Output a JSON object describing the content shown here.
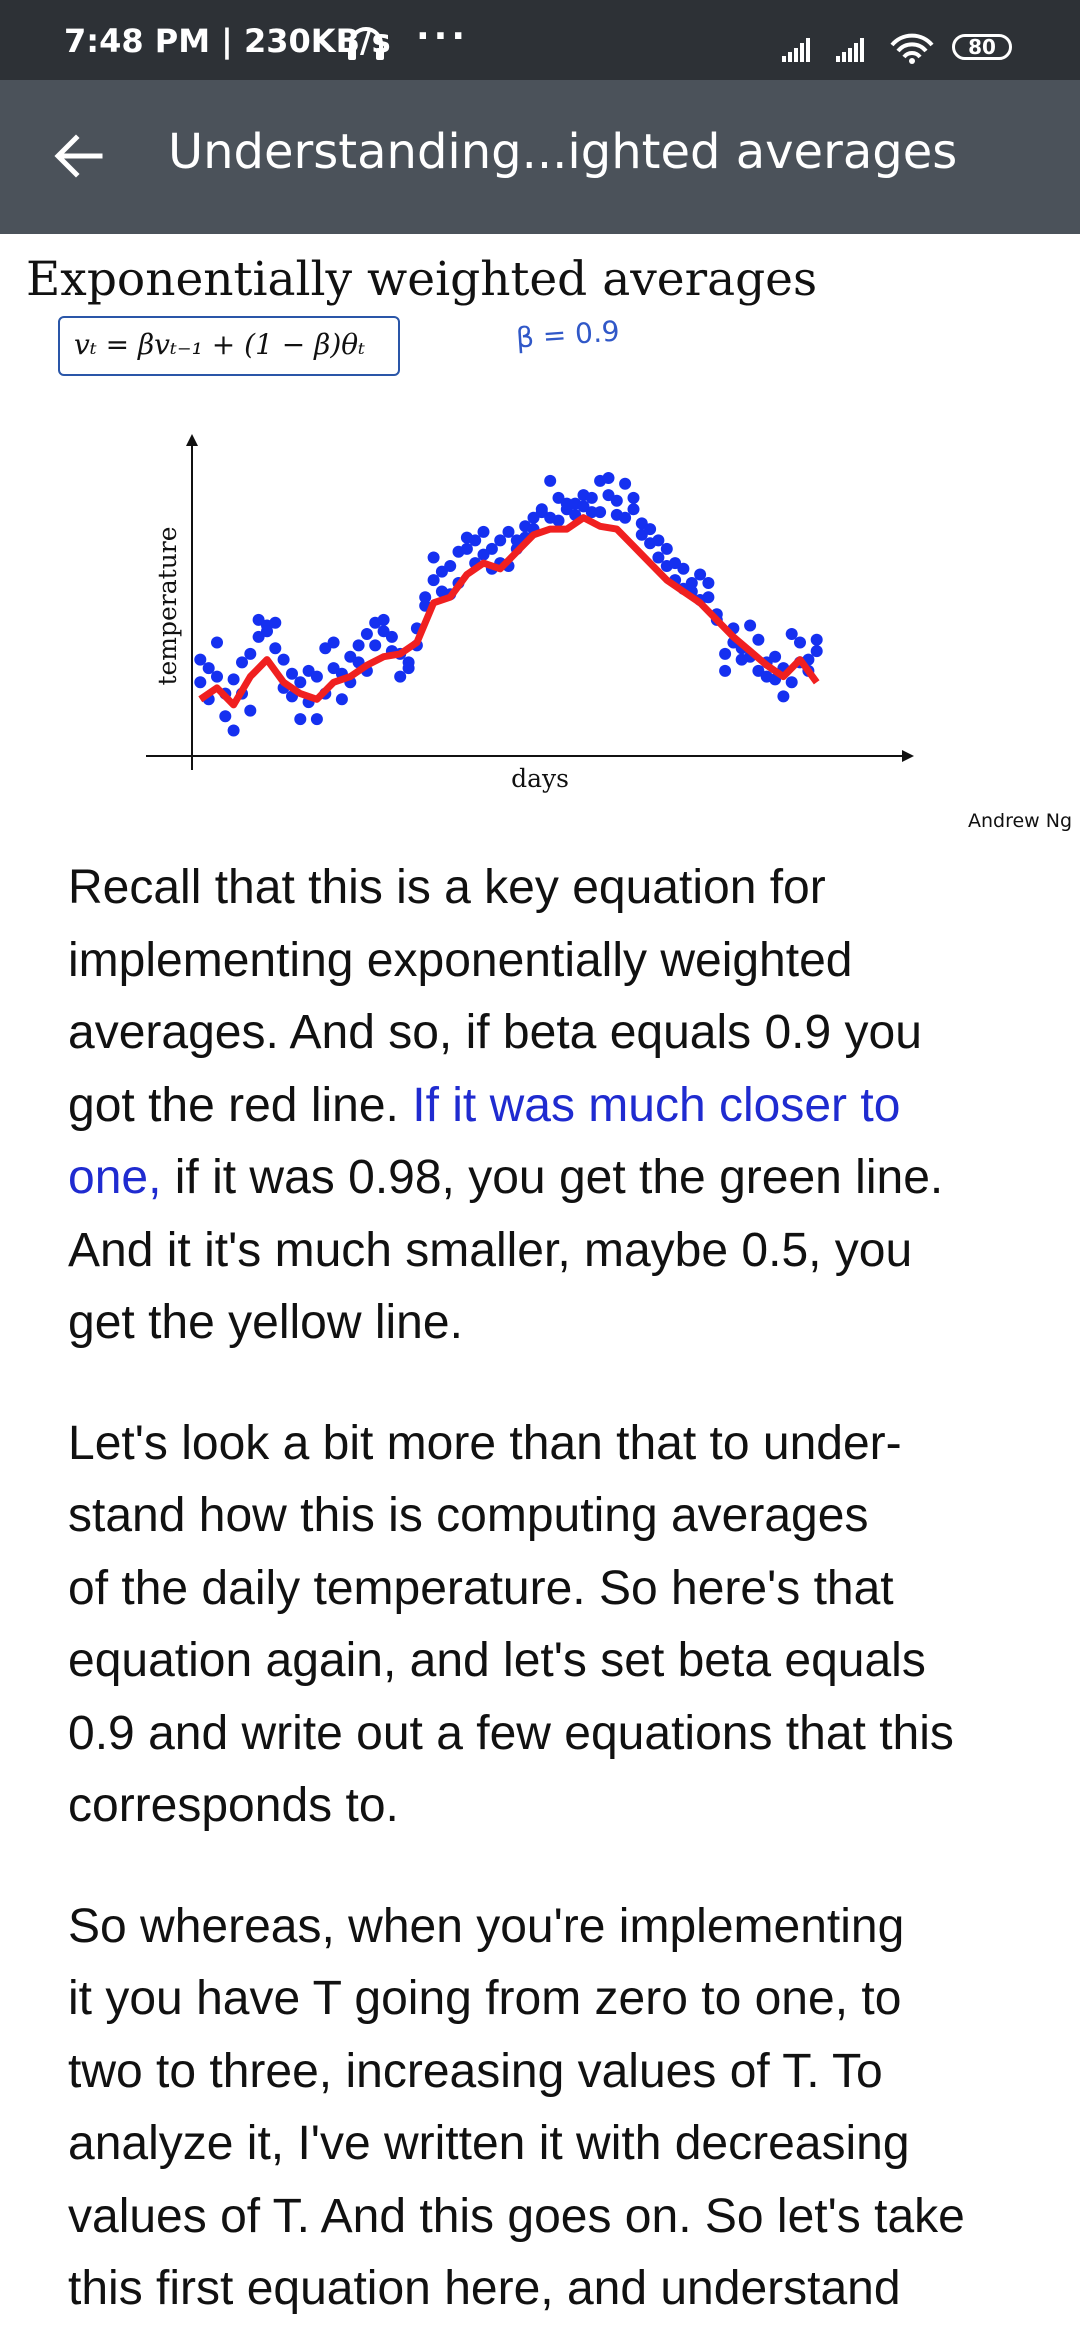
{
  "status_bar": {
    "time": "7:48 PM | 230KB/s",
    "dots": "···",
    "battery": "80"
  },
  "app_bar": {
    "title": "Understanding...ighted averages"
  },
  "slide": {
    "title": "Exponentially weighted averages",
    "formula": "v_t = βv_{t−1} + (1 − β)θ_t",
    "formula_display": "vₜ = βvₜ₋₁ + (1 − β)θₜ",
    "beta_note": "β = 0.9",
    "credit": "Andrew Ng"
  },
  "chart_data": {
    "type": "scatter",
    "xlabel": "days",
    "ylabel": "temperature",
    "grid": false,
    "legend": "none",
    "series": [
      {
        "kind": "scatter",
        "color": "#1530f0",
        "points": [
          [
            1,
            34
          ],
          [
            1,
            26
          ],
          [
            2,
            31
          ],
          [
            2,
            20
          ],
          [
            3,
            28
          ],
          [
            3,
            40
          ],
          [
            4,
            22
          ],
          [
            4,
            14
          ],
          [
            5,
            27
          ],
          [
            5,
            9
          ],
          [
            6,
            22
          ],
          [
            6,
            33
          ],
          [
            7,
            36
          ],
          [
            7,
            16
          ],
          [
            8,
            42
          ],
          [
            8,
            48
          ],
          [
            9,
            46
          ],
          [
            9,
            44
          ],
          [
            10,
            47
          ],
          [
            10,
            38
          ],
          [
            11,
            34
          ],
          [
            11,
            24
          ],
          [
            12,
            29
          ],
          [
            12,
            21
          ],
          [
            13,
            26
          ],
          [
            13,
            13
          ],
          [
            14,
            19
          ],
          [
            14,
            30
          ],
          [
            15,
            28
          ],
          [
            15,
            13
          ],
          [
            16,
            22
          ],
          [
            16,
            38
          ],
          [
            17,
            40
          ],
          [
            17,
            31
          ],
          [
            18,
            29
          ],
          [
            18,
            20
          ],
          [
            19,
            26
          ],
          [
            19,
            35
          ],
          [
            20,
            39
          ],
          [
            20,
            33
          ],
          [
            21,
            30
          ],
          [
            21,
            43
          ],
          [
            22,
            47
          ],
          [
            22,
            39
          ],
          [
            23,
            44
          ],
          [
            23,
            48
          ],
          [
            24,
            37
          ],
          [
            24,
            42
          ],
          [
            25,
            36
          ],
          [
            25,
            28
          ],
          [
            26,
            33
          ],
          [
            26,
            31
          ],
          [
            27,
            39
          ],
          [
            27,
            45
          ],
          [
            28,
            53
          ],
          [
            28,
            56
          ],
          [
            29,
            70
          ],
          [
            29,
            62
          ],
          [
            30,
            65
          ],
          [
            30,
            58
          ],
          [
            31,
            67
          ],
          [
            31,
            57
          ],
          [
            32,
            61
          ],
          [
            32,
            72
          ],
          [
            33,
            73
          ],
          [
            33,
            77
          ],
          [
            34,
            76
          ],
          [
            34,
            68
          ],
          [
            35,
            71
          ],
          [
            35,
            79
          ],
          [
            36,
            73
          ],
          [
            36,
            66
          ],
          [
            37,
            68
          ],
          [
            37,
            76
          ],
          [
            38,
            67
          ],
          [
            38,
            79
          ],
          [
            39,
            73
          ],
          [
            39,
            76
          ],
          [
            40,
            81
          ],
          [
            40,
            77
          ],
          [
            41,
            84
          ],
          [
            41,
            80
          ],
          [
            42,
            86
          ],
          [
            42,
            87
          ],
          [
            43,
            84
          ],
          [
            43,
            97
          ],
          [
            44,
            83
          ],
          [
            44,
            91
          ],
          [
            45,
            87
          ],
          [
            45,
            89
          ],
          [
            46,
            85
          ],
          [
            46,
            89
          ],
          [
            47,
            88
          ],
          [
            47,
            92
          ],
          [
            48,
            86
          ],
          [
            48,
            91
          ],
          [
            49,
            86
          ],
          [
            49,
            97
          ],
          [
            50,
            92
          ],
          [
            50,
            98
          ],
          [
            51,
            90
          ],
          [
            51,
            85
          ],
          [
            52,
            84
          ],
          [
            52,
            96
          ],
          [
            53,
            87
          ],
          [
            53,
            91
          ],
          [
            54,
            78
          ],
          [
            54,
            82
          ],
          [
            55,
            80
          ],
          [
            55,
            75
          ],
          [
            56,
            70
          ],
          [
            56,
            76
          ],
          [
            57,
            73
          ],
          [
            57,
            67
          ],
          [
            58,
            68
          ],
          [
            58,
            62
          ],
          [
            59,
            66
          ],
          [
            59,
            59
          ],
          [
            60,
            61
          ],
          [
            60,
            58
          ],
          [
            61,
            64
          ],
          [
            61,
            55
          ],
          [
            62,
            56
          ],
          [
            62,
            61
          ],
          [
            63,
            50
          ],
          [
            63,
            48
          ],
          [
            64,
            36
          ],
          [
            64,
            30
          ],
          [
            65,
            40
          ],
          [
            65,
            45
          ],
          [
            66,
            38
          ],
          [
            66,
            34
          ],
          [
            67,
            35
          ],
          [
            67,
            46
          ],
          [
            68,
            30
          ],
          [
            68,
            41
          ],
          [
            69,
            33
          ],
          [
            69,
            28
          ],
          [
            70,
            27
          ],
          [
            70,
            35
          ],
          [
            71,
            21
          ],
          [
            71,
            31
          ],
          [
            72,
            26
          ],
          [
            72,
            43
          ],
          [
            73,
            40
          ],
          [
            73,
            33
          ],
          [
            74,
            34
          ],
          [
            74,
            30
          ],
          [
            75,
            37
          ],
          [
            75,
            41
          ]
        ]
      },
      {
        "kind": "line",
        "color": "#f02020",
        "points": [
          [
            1,
            20
          ],
          [
            3,
            24
          ],
          [
            5,
            18
          ],
          [
            7,
            28
          ],
          [
            9,
            34
          ],
          [
            11,
            26
          ],
          [
            13,
            22
          ],
          [
            15,
            20
          ],
          [
            17,
            26
          ],
          [
            19,
            28
          ],
          [
            21,
            32
          ],
          [
            23,
            35
          ],
          [
            25,
            36
          ],
          [
            27,
            40
          ],
          [
            29,
            54
          ],
          [
            31,
            56
          ],
          [
            33,
            64
          ],
          [
            35,
            68
          ],
          [
            37,
            66
          ],
          [
            39,
            72
          ],
          [
            41,
            78
          ],
          [
            43,
            80
          ],
          [
            45,
            80
          ],
          [
            47,
            84
          ],
          [
            49,
            81
          ],
          [
            51,
            80
          ],
          [
            53,
            74
          ],
          [
            55,
            68
          ],
          [
            57,
            62
          ],
          [
            59,
            58
          ],
          [
            61,
            54
          ],
          [
            63,
            48
          ],
          [
            65,
            42
          ],
          [
            67,
            37
          ],
          [
            69,
            32
          ],
          [
            71,
            28
          ],
          [
            73,
            34
          ],
          [
            75,
            26
          ]
        ]
      }
    ],
    "xlim": [
      0,
      85
    ],
    "ylim": [
      0,
      110
    ]
  },
  "transcript": {
    "paragraphs": [
      [
        [
          {
            "t": "Recall that this is a key equation for"
          }
        ],
        [
          {
            "t": "implementing exponentially weighted"
          }
        ],
        [
          {
            "t": "averages. And so, if beta equals 0.9 you"
          }
        ],
        [
          {
            "t": "got the red line. "
          },
          {
            "t": "If it was much closer to",
            "hl": true
          }
        ],
        [
          {
            "t": "one,",
            "hl": true
          },
          {
            "t": " if it was 0.98, you get the green line."
          }
        ],
        [
          {
            "t": "And it it's much smaller, maybe 0.5, you"
          }
        ],
        [
          {
            "t": "get the yellow line."
          }
        ]
      ],
      [
        [
          {
            "t": "Let's look a bit more than that to under-"
          }
        ],
        [
          {
            "t": "stand how this is computing averages"
          }
        ],
        [
          {
            "t": "of the daily temperature. So here's that"
          }
        ],
        [
          {
            "t": "equation again, and let's set beta equals"
          }
        ],
        [
          {
            "t": "0.9 and write out a few equations that this"
          }
        ],
        [
          {
            "t": "corresponds to."
          }
        ]
      ],
      [
        [
          {
            "t": "So whereas, when you're implementing"
          }
        ],
        [
          {
            "t": "it you have T going from zero to one, to"
          }
        ],
        [
          {
            "t": "two to three, increasing values of T.  To"
          }
        ],
        [
          {
            "t": "analyze it, I've written it with decreasing"
          }
        ],
        [
          {
            "t": "values of T.  And this goes on. So let's take"
          }
        ],
        [
          {
            "t": "this first equation here, and understand"
          }
        ]
      ]
    ]
  }
}
